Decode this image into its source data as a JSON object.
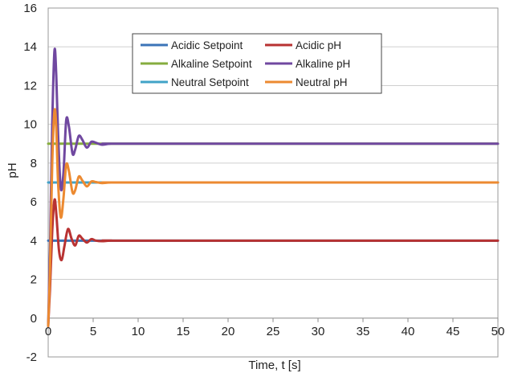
{
  "chart_data": {
    "type": "line",
    "xlabel": "Time, t [s]",
    "ylabel": "pH",
    "xlim": [
      0,
      50
    ],
    "ylim": [
      -2,
      16
    ],
    "x_ticks": [
      "0",
      "5",
      "10",
      "15",
      "20",
      "25",
      "30",
      "35",
      "40",
      "45",
      "50"
    ],
    "y_ticks": [
      "-2",
      "0",
      "2",
      "4",
      "6",
      "8",
      "10",
      "12",
      "14",
      "16"
    ],
    "grid": "horizontal",
    "legend_position": "top-center",
    "series": [
      {
        "name": "Acidic Setpoint",
        "color": "#3b74b8",
        "x": [
          0,
          50
        ],
        "y": [
          4,
          4
        ]
      },
      {
        "name": "Acidic pH",
        "color": "#b83232",
        "x": [
          0,
          0.2,
          0.45,
          0.7,
          0.9,
          1.2,
          1.5,
          1.8,
          2.2,
          2.6,
          3.0,
          3.4,
          3.8,
          4.3,
          4.8,
          5.3,
          6.0,
          7.0,
          10,
          50
        ],
        "y": [
          -0.4,
          1.5,
          4.5,
          6.1,
          5.4,
          3.5,
          3.0,
          3.7,
          4.6,
          4.1,
          3.75,
          4.25,
          4.1,
          3.9,
          4.08,
          4.0,
          3.97,
          4.0,
          4.0,
          4.0
        ]
      },
      {
        "name": "Alkaline Setpoint",
        "color": "#86ac3f",
        "x": [
          0,
          50
        ],
        "y": [
          9,
          9
        ]
      },
      {
        "name": "Alkaline pH",
        "color": "#7048a0",
        "x": [
          0,
          0.2,
          0.45,
          0.7,
          0.9,
          1.1,
          1.4,
          1.7,
          2.0,
          2.3,
          2.7,
          3.0,
          3.4,
          3.8,
          4.3,
          4.8,
          5.3,
          6.0,
          7.0,
          10,
          50
        ],
        "y": [
          -0.4,
          3.5,
          10.0,
          13.8,
          12.5,
          9.5,
          6.7,
          7.5,
          10.2,
          9.9,
          8.5,
          8.7,
          9.4,
          9.2,
          8.8,
          9.1,
          9.05,
          8.95,
          9.0,
          9.0,
          9.0
        ]
      },
      {
        "name": "Neutral Setpoint",
        "color": "#41a3c7",
        "x": [
          0,
          50
        ],
        "y": [
          7,
          7
        ]
      },
      {
        "name": "Neutral pH",
        "color": "#ec8a31",
        "x": [
          0,
          0.2,
          0.45,
          0.7,
          0.9,
          1.1,
          1.4,
          1.7,
          2.0,
          2.3,
          2.7,
          3.0,
          3.4,
          3.8,
          4.3,
          4.8,
          5.3,
          6.0,
          7.0,
          10,
          50
        ],
        "y": [
          -0.4,
          2.5,
          8.0,
          10.7,
          9.8,
          7.0,
          5.2,
          6.2,
          7.9,
          7.6,
          6.5,
          6.6,
          7.3,
          7.1,
          6.8,
          7.05,
          7.02,
          6.97,
          7.0,
          7.0,
          7.0
        ]
      }
    ]
  }
}
